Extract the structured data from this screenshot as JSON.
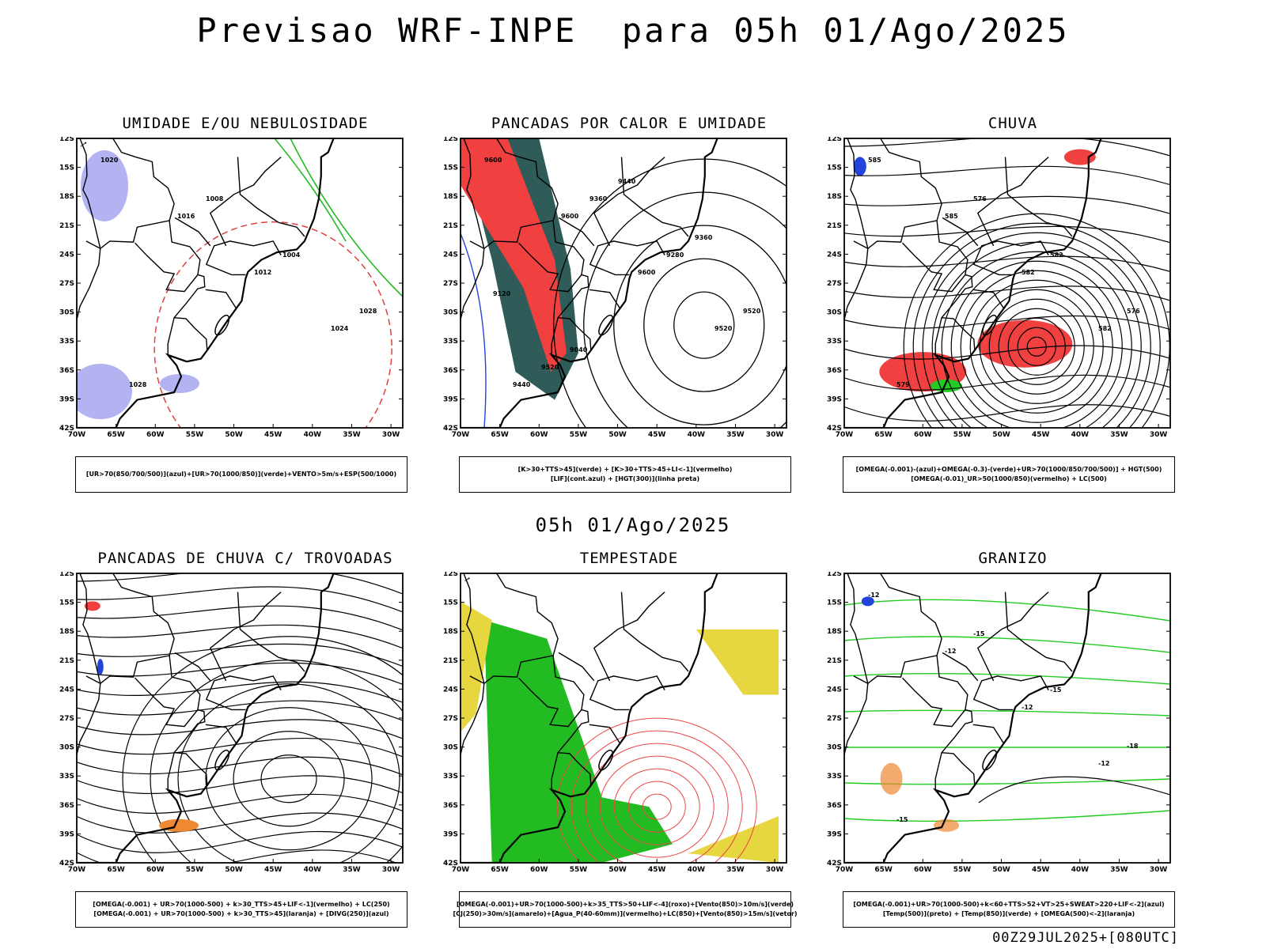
{
  "title": "Previsao WRF-INPE  para 05h 01/Ago/2025",
  "mid_title": "05h 01/Ago/2025",
  "footer": "00Z29JUL2025+[080UTC]",
  "axes": {
    "lat_labels": [
      "12S",
      "15S",
      "18S",
      "21S",
      "24S",
      "27S",
      "30S",
      "33S",
      "36S",
      "39S",
      "42S"
    ],
    "lon_labels": [
      "70W",
      "65W",
      "60W",
      "55W",
      "50W",
      "45W",
      "40W",
      "35W",
      "30W"
    ]
  },
  "panels": [
    {
      "title": "UMIDADE E/OU NEBULOSIDADE",
      "legend": [
        "[UR>70(850/700/500)](azul)+[UR>70(1000/850)](verde)+VENTO>5m/s+ESP(500/1000)"
      ],
      "contour_labels": [
        "1020",
        "1016",
        "1012",
        "1024",
        "1028",
        "1008",
        "1004",
        "1028"
      ]
    },
    {
      "title": "PANCADAS POR CALOR E UMIDADE",
      "legend": [
        "[K>30+TTS>45](verde) + [K>30+TTS>45+LI<-1](vermelho)",
        "[LIF](cont.azul) + [HGT(300)](linha preta)"
      ],
      "contour_labels": [
        "9600",
        "9600",
        "9600",
        "9520",
        "9440",
        "9360",
        "9280",
        "9520",
        "9520",
        "9440",
        "9360",
        "9120",
        "9040"
      ]
    },
    {
      "title": "CHUVA",
      "legend": [
        "[OMEGA(-0.001)-(azul)+OMEGA(-0.3)-(verde)+UR>70(1000/850/700/500)] + HGT(500)",
        "[OMEGA(-0.01)_UR>50(1000/850)(vermelho) + LC(500)"
      ],
      "contour_labels": [
        "585",
        "585",
        "582",
        "582",
        "579",
        "576",
        "582",
        "576"
      ]
    },
    {
      "title": "PANCADAS DE CHUVA C/ TROVOADAS",
      "legend": [
        "[OMEGA(-0.001) + UR>70(1000-500) + k>30_TTS>45+LIF<-1](vermelho) + LC(250)",
        "[OMEGA(-0.001) + UR>70(1000-500) + k>30_TTS>45](laranja) + [DIVG(250)](azul)"
      ],
      "contour_labels": []
    },
    {
      "title": "TEMPESTADE",
      "legend": [
        "[OMEGA(-0.001)+UR>70(1000-500)+k>35_TTS>50+LIF<-4](roxo)+[Vento(850)>10m/s](verde)",
        "[CJ(250)>30m/s](amarelo)+[Agua_P(40-60mm)](vermelho)+LC(850)+[Vento(850)>15m/s](vetor)"
      ],
      "contour_labels": []
    },
    {
      "title": "GRANIZO",
      "legend": [
        "[OMEGA(-0.001)+UR>70(1000-500)+k<60+TTS>52+VT>25+SWEAT>220+LIF<-2](azul)",
        "[Temp(500)](preto) + [Temp(850)](verde) + [OMEGA(500)<-2](laranja)"
      ],
      "contour_labels": [
        "-12",
        "-12",
        "-12",
        "-12",
        "-15",
        "-15",
        "-15",
        "-18"
      ]
    }
  ]
}
